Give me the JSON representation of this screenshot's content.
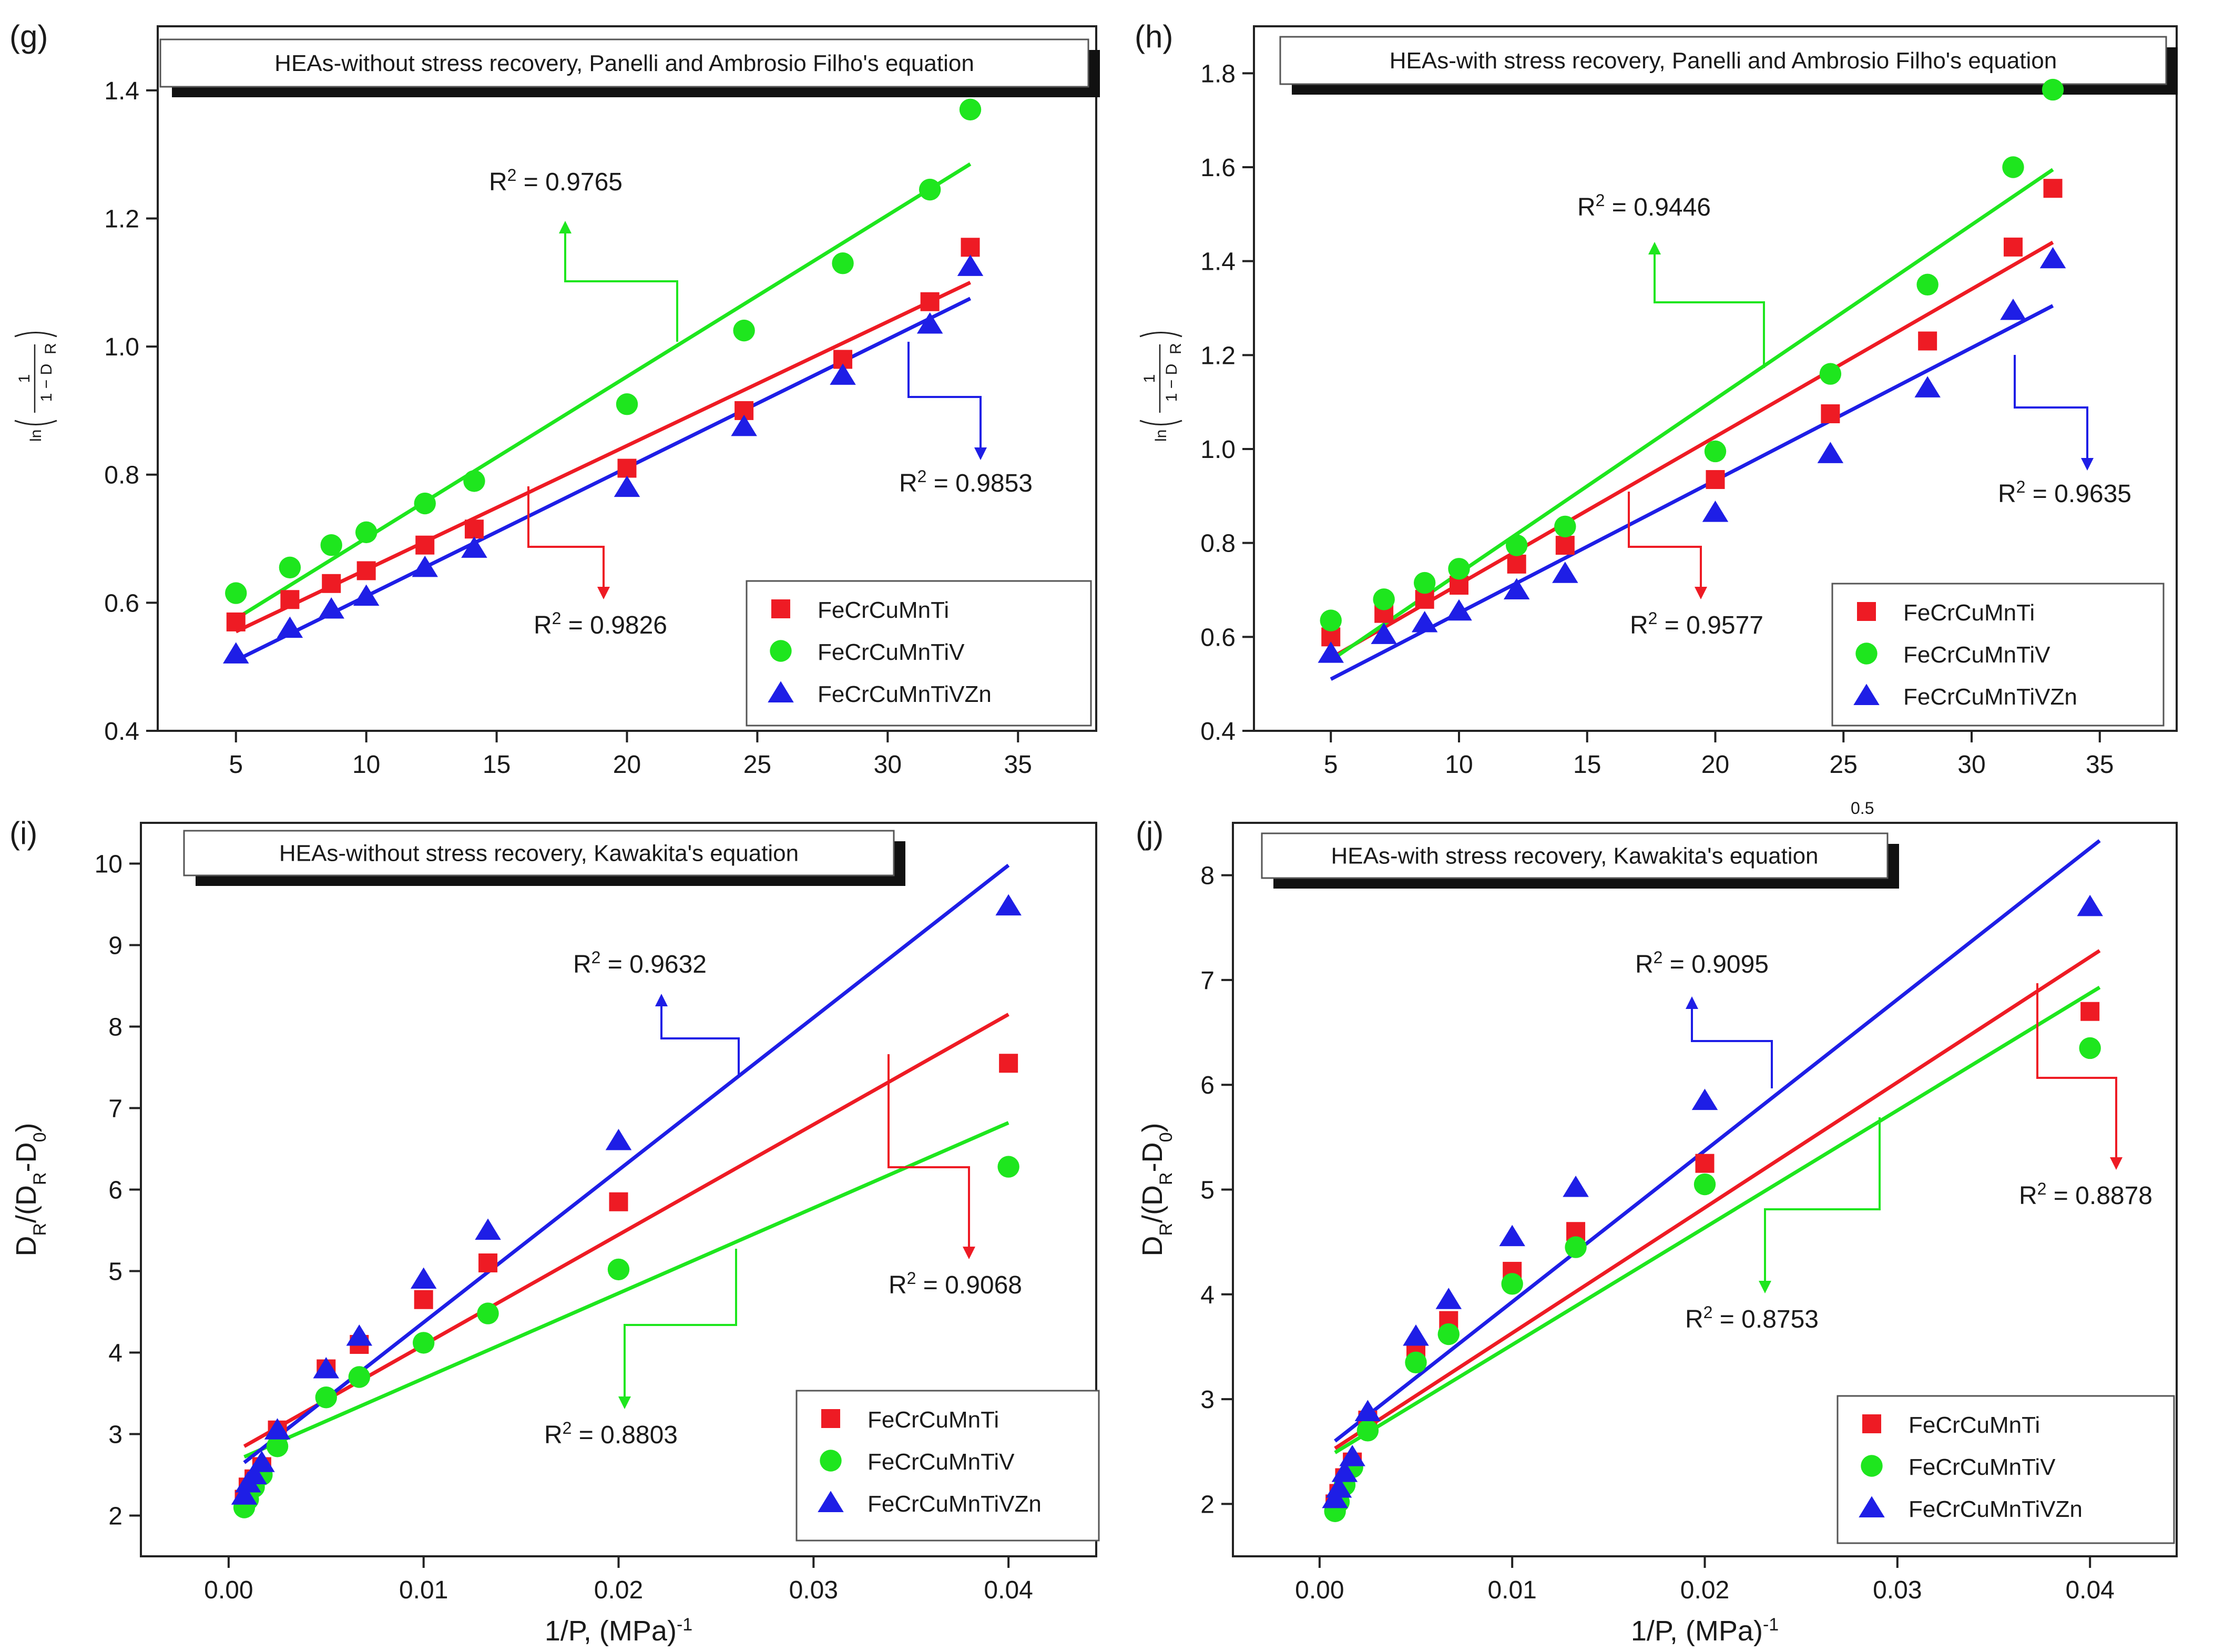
{
  "figure": {
    "domain": "Chart"
  },
  "colors": {
    "red": "#ee1b24",
    "green": "#1ee61e",
    "blue": "#1e1ee6",
    "title_shadow": "#111111"
  },
  "chart_data": [
    {
      "id": "g",
      "panel_label": "(g)",
      "type": "scatter",
      "title": "HEAs-without stress recovery,  Panelli and Ambrosio Filho's equation",
      "xlabel": "",
      "ylabel": {
        "prefix": "ln",
        "numerator": "1",
        "denominator": "1 − D",
        "sub": "R"
      },
      "xlim": [
        2,
        38
      ],
      "ylim": [
        0.4,
        1.5
      ],
      "xticks": [
        5,
        10,
        15,
        20,
        25,
        30,
        35
      ],
      "yticks": [
        0.4,
        0.6,
        0.8,
        1.0,
        1.2,
        1.4
      ],
      "ytick_labels": [
        "0.4",
        "0.6",
        "0.8",
        "1.0",
        "1.2",
        "1.4"
      ],
      "series": [
        {
          "name": "FeCrCuMnTi",
          "color": "red",
          "marker": "square",
          "x": [
            5,
            7.07,
            8.66,
            10,
            12.25,
            14.14,
            20,
            24.49,
            28.28,
            31.62,
            33.17
          ],
          "y": [
            0.57,
            0.605,
            0.63,
            0.65,
            0.69,
            0.715,
            0.81,
            0.9,
            0.98,
            1.07,
            1.155
          ],
          "fit": [
            [
              5,
              0.555
            ],
            [
              33.17,
              1.1
            ]
          ],
          "r2": "0.9826"
        },
        {
          "name": "FeCrCuMnTiV",
          "color": "green",
          "marker": "circle",
          "x": [
            5,
            7.07,
            8.66,
            10,
            12.25,
            14.14,
            20,
            24.49,
            28.28,
            31.62,
            33.17
          ],
          "y": [
            0.615,
            0.655,
            0.69,
            0.71,
            0.755,
            0.79,
            0.91,
            1.025,
            1.13,
            1.245,
            1.37
          ],
          "fit": [
            [
              5,
              0.575
            ],
            [
              33.17,
              1.285
            ]
          ],
          "r2": "0.9765"
        },
        {
          "name": "FeCrCuMnTiVZn",
          "color": "blue",
          "marker": "triangle",
          "x": [
            5,
            7.07,
            8.66,
            10,
            12.25,
            14.14,
            20,
            24.49,
            28.28,
            31.62,
            33.17
          ],
          "y": [
            0.52,
            0.56,
            0.59,
            0.61,
            0.655,
            0.685,
            0.78,
            0.875,
            0.955,
            1.035,
            1.125
          ],
          "fit": [
            [
              5,
              0.51
            ],
            [
              33.17,
              1.075
            ]
          ],
          "r2": "0.9853"
        }
      ],
      "legend_position": "bottom-right"
    },
    {
      "id": "h",
      "panel_label": "(h)",
      "type": "scatter",
      "title": "HEAs-with stress recovery,  Panelli and Ambrosio Filho's equation",
      "xlabel": "",
      "ylabel": {
        "prefix": "ln",
        "numerator": "1",
        "denominator": "1 − D",
        "sub": "R"
      },
      "xlim": [
        2,
        38
      ],
      "ylim": [
        0.4,
        1.9
      ],
      "xticks": [
        5,
        10,
        15,
        20,
        25,
        30,
        35
      ],
      "yticks": [
        0.4,
        0.6,
        0.8,
        1.0,
        1.2,
        1.4,
        1.6,
        1.8
      ],
      "ytick_labels": [
        "0.4",
        "0.6",
        "0.8",
        "1.0",
        "1.2",
        "1.4",
        "1.6",
        "1.8"
      ],
      "series": [
        {
          "name": "FeCrCuMnTi",
          "color": "red",
          "marker": "square",
          "x": [
            5,
            7.07,
            8.66,
            10,
            12.25,
            14.14,
            20,
            24.49,
            28.28,
            31.62,
            33.17
          ],
          "y": [
            0.6,
            0.65,
            0.68,
            0.71,
            0.755,
            0.795,
            0.935,
            1.075,
            1.23,
            1.43,
            1.555
          ],
          "fit": [
            [
              5,
              0.555
            ],
            [
              33.17,
              1.44
            ]
          ],
          "r2": "0.9577"
        },
        {
          "name": "FeCrCuMnTiV",
          "color": "green",
          "marker": "circle",
          "x": [
            5,
            7.07,
            8.66,
            10,
            12.25,
            14.14,
            20,
            24.49,
            28.28,
            31.62,
            33.17
          ],
          "y": [
            0.635,
            0.68,
            0.715,
            0.745,
            0.795,
            0.835,
            0.995,
            1.16,
            1.35,
            1.6,
            1.765
          ],
          "fit": [
            [
              5,
              0.55
            ],
            [
              33.17,
              1.595
            ]
          ],
          "r2": "0.9446"
        },
        {
          "name": "FeCrCuMnTiVZn",
          "color": "blue",
          "marker": "triangle",
          "x": [
            5,
            7.07,
            8.66,
            10,
            12.25,
            14.14,
            20,
            24.49,
            28.28,
            31.62,
            33.17
          ],
          "y": [
            0.565,
            0.605,
            0.63,
            0.655,
            0.7,
            0.735,
            0.865,
            0.99,
            1.13,
            1.295,
            1.405
          ],
          "fit": [
            [
              5,
              0.51
            ],
            [
              33.17,
              1.305
            ]
          ],
          "r2": "0.9635"
        }
      ],
      "legend_position": "bottom-right"
    },
    {
      "id": "i",
      "panel_label": "(i)",
      "type": "scatter",
      "title": "HEAs-without stress recovery, Kawakita's equation",
      "xlabel": "1/P, (MPa)",
      "xlabel_sup": "-1",
      "ylabel": {
        "text": "D",
        "sub1": "R",
        "mid": "/(D",
        "sub2": "R",
        "mid2": "-D",
        "sub3": "0",
        "end": ")"
      },
      "xlim": [
        -0.0045,
        0.0445
      ],
      "ylim": [
        1.5,
        10.5
      ],
      "xticks": [
        0,
        0.01,
        0.02,
        0.03,
        0.04
      ],
      "xtick_labels": [
        "0.00",
        "0.01",
        "0.02",
        "0.03",
        "0.04"
      ],
      "yticks": [
        2,
        3,
        4,
        5,
        6,
        7,
        8,
        9,
        10
      ],
      "ytick_labels": [
        "2",
        "3",
        "4",
        "5",
        "6",
        "7",
        "8",
        "9",
        "10"
      ],
      "series": [
        {
          "name": "FeCrCuMnTi",
          "color": "red",
          "marker": "square",
          "x": [
            0.0008,
            0.001,
            0.0013,
            0.0017,
            0.0025,
            0.005,
            0.0067,
            0.01,
            0.0133,
            0.02,
            0.04
          ],
          "y": [
            2.2,
            2.35,
            2.45,
            2.6,
            3.05,
            3.8,
            4.1,
            4.65,
            5.1,
            5.85,
            7.55
          ],
          "fit": [
            [
              0.0008,
              2.85
            ],
            [
              0.04,
              8.15
            ]
          ],
          "r2": "0.9068"
        },
        {
          "name": "FeCrCuMnTiV",
          "color": "green",
          "marker": "circle",
          "x": [
            0.0008,
            0.001,
            0.0013,
            0.0017,
            0.0025,
            0.005,
            0.0067,
            0.01,
            0.0133,
            0.02,
            0.04
          ],
          "y": [
            2.1,
            2.2,
            2.35,
            2.5,
            2.85,
            3.45,
            3.7,
            4.12,
            4.48,
            5.02,
            6.28
          ],
          "fit": [
            [
              0.0008,
              2.72
            ],
            [
              0.04,
              6.82
            ]
          ],
          "r2": "0.8803"
        },
        {
          "name": "FeCrCuMnTiVZn",
          "color": "blue",
          "marker": "triangle",
          "x": [
            0.0008,
            0.001,
            0.0013,
            0.0017,
            0.0025,
            0.005,
            0.0067,
            0.01,
            0.0133,
            0.02,
            0.04
          ],
          "y": [
            2.25,
            2.4,
            2.5,
            2.65,
            3.05,
            3.8,
            4.2,
            4.9,
            5.5,
            6.6,
            9.48
          ],
          "fit": [
            [
              0.0008,
              2.65
            ],
            [
              0.04,
              9.98
            ]
          ],
          "r2": "0.9632"
        }
      ],
      "legend_position": "bottom-right"
    },
    {
      "id": "j",
      "panel_label": "(j)",
      "type": "scatter",
      "title": "HEAs-with stress recovery, Kawakita's equation",
      "xlabel": "1/P, (MPa)",
      "xlabel_sup": "-1",
      "ylabel": {
        "text": "D",
        "sub1": "R",
        "mid": "/(D",
        "sub2": "R",
        "mid2": "-D",
        "sub3": "0",
        "end": ")"
      },
      "xlim": [
        -0.0045,
        0.0445
      ],
      "ylim": [
        1.5,
        8.5
      ],
      "xticks": [
        0,
        0.01,
        0.02,
        0.03,
        0.04
      ],
      "xtick_labels": [
        "0.00",
        "0.01",
        "0.02",
        "0.03",
        "0.04"
      ],
      "yticks": [
        2,
        3,
        4,
        5,
        6,
        7,
        8
      ],
      "ytick_labels": [
        "2",
        "3",
        "4",
        "5",
        "6",
        "7",
        "8"
      ],
      "series": [
        {
          "name": "FeCrCuMnTi",
          "color": "red",
          "marker": "square",
          "x": [
            0.0008,
            0.001,
            0.0013,
            0.0017,
            0.0025,
            0.005,
            0.0067,
            0.01,
            0.0133,
            0.02,
            0.04
          ],
          "y": [
            2.0,
            2.1,
            2.25,
            2.4,
            2.8,
            3.45,
            3.75,
            4.22,
            4.6,
            5.25,
            6.7
          ],
          "fit": [
            [
              0.0008,
              2.53
            ],
            [
              0.0405,
              7.28
            ]
          ],
          "r2": "0.8878"
        },
        {
          "name": "FeCrCuMnTiV",
          "color": "green",
          "marker": "circle",
          "x": [
            0.0008,
            0.001,
            0.0013,
            0.0017,
            0.0025,
            0.005,
            0.0067,
            0.01,
            0.0133,
            0.02,
            0.04
          ],
          "y": [
            1.93,
            2.02,
            2.18,
            2.35,
            2.7,
            3.35,
            3.62,
            4.1,
            4.45,
            5.05,
            6.35
          ],
          "fit": [
            [
              0.0008,
              2.49
            ],
            [
              0.0405,
              6.93
            ]
          ],
          "r2": "0.8753"
        },
        {
          "name": "FeCrCuMnTiVZn",
          "color": "blue",
          "marker": "triangle",
          "x": [
            0.0008,
            0.001,
            0.0013,
            0.0017,
            0.0025,
            0.005,
            0.0067,
            0.01,
            0.0133,
            0.02,
            0.04
          ],
          "y": [
            2.05,
            2.15,
            2.3,
            2.45,
            2.88,
            3.6,
            3.95,
            4.55,
            5.02,
            5.85,
            7.7
          ],
          "fit": [
            [
              0.0008,
              2.6
            ],
            [
              0.0405,
              8.33
            ]
          ],
          "r2": "0.9095"
        }
      ],
      "legend_position": "bottom-right"
    }
  ],
  "stray_label": "0.5"
}
